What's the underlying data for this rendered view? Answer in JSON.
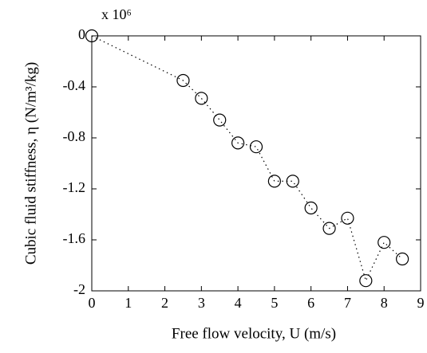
{
  "chart_data": {
    "type": "line",
    "xlabel": "Free flow velocity, U (m/s)",
    "ylabel": "Cubic fluid stiffness, η (N/m³/kg)",
    "annotation": "x 10⁶",
    "x": [
      0,
      2.5,
      3,
      3.5,
      4,
      4.5,
      5,
      5.5,
      6,
      6.5,
      7,
      7.5,
      8,
      8.5
    ],
    "series": [
      {
        "color": "#000000",
        "marker": "circle",
        "linestyle": "dotted",
        "values": [
          0,
          -0.35,
          -0.49,
          -0.66,
          -0.84,
          -0.87,
          -1.14,
          -1.14,
          -1.35,
          -1.51,
          -1.43,
          -1.92,
          -1.62,
          -1.75
        ]
      }
    ],
    "xlim": [
      0,
      9
    ],
    "xticks": [
      0,
      1,
      2,
      3,
      4,
      5,
      6,
      7,
      8,
      9
    ],
    "ylim": [
      -2,
      0
    ],
    "yticks": [
      0,
      -0.4,
      -0.8,
      -1.2,
      -1.6,
      -2
    ]
  }
}
